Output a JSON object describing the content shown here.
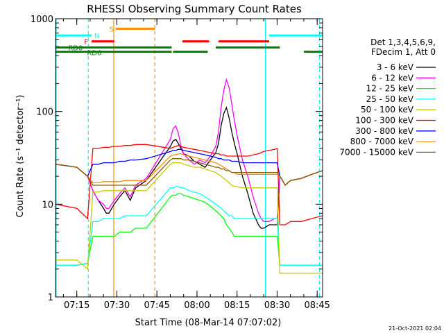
{
  "chart_data": {
    "type": "line",
    "title": "RHESSI Observing Summary Count Rates",
    "xlabel": "Start Time (08-Mar-14 07:07:02)",
    "ylabel": "Count Rate (s⁻¹ detector⁻¹)",
    "y_scale": "log",
    "ylim": [
      1,
      1000
    ],
    "xlim_minutes": [
      0,
      100
    ],
    "x_ticks": [
      {
        "label": "07:15",
        "minute": 7.97
      },
      {
        "label": "07:30",
        "minute": 22.97
      },
      {
        "label": "07:45",
        "minute": 37.97
      },
      {
        "label": "08:00",
        "minute": 52.97
      },
      {
        "label": "08:15",
        "minute": 67.97
      },
      {
        "label": "08:30",
        "minute": 82.97
      },
      {
        "label": "08:45",
        "minute": 97.97
      }
    ],
    "y_ticks": [
      {
        "label": "1",
        "value": 1
      },
      {
        "label": "10",
        "value": 10
      },
      {
        "label": "100",
        "value": 100
      },
      {
        "label": "1000",
        "value": 1000
      }
    ],
    "legend_header": [
      "Det 1,3,4,5,6,9,",
      "FDecim 1, Att 0"
    ],
    "legend_position": "right",
    "series": [
      {
        "name": "3 - 6 keV",
        "color": "#000000",
        "x": [
          0,
          8,
          12,
          14,
          16,
          18,
          19,
          20,
          22,
          24,
          26,
          28,
          30,
          34,
          43,
          44,
          45,
          46,
          47,
          48,
          50,
          52,
          54,
          56,
          58,
          60,
          61,
          62,
          63,
          64,
          65,
          66,
          67,
          68,
          70,
          72,
          74,
          76,
          77,
          78,
          80,
          82,
          83,
          84,
          85,
          86,
          88,
          92,
          96,
          100
        ],
        "y": [
          27,
          25,
          20,
          14,
          11,
          9,
          8,
          8,
          10,
          12,
          14,
          11,
          15,
          18,
          42,
          48,
          50,
          45,
          40,
          35,
          33,
          29,
          27,
          25,
          30,
          36,
          45,
          70,
          95,
          110,
          85,
          60,
          45,
          35,
          20,
          13,
          8,
          6,
          5.5,
          5.5,
          6,
          6,
          6,
          20,
          18,
          16,
          18,
          19,
          21,
          23
        ]
      },
      {
        "name": "6 - 12 keV",
        "color": "#ff00ff",
        "x": [
          0,
          8,
          12,
          14,
          16,
          18,
          19,
          20,
          22,
          24,
          26,
          28,
          30,
          34,
          43,
          44,
          45,
          46,
          47,
          48,
          50,
          52,
          54,
          56,
          58,
          60,
          61,
          62,
          63,
          64,
          65,
          66,
          67,
          68,
          70,
          72,
          74,
          76,
          77,
          78,
          80,
          82,
          83,
          84,
          85,
          86,
          88,
          92,
          96,
          100
        ],
        "y": [
          27,
          25,
          20,
          14,
          11,
          10,
          9,
          9,
          11,
          13,
          15,
          12,
          16,
          19,
          50,
          65,
          70,
          58,
          42,
          35,
          30,
          27,
          30,
          28,
          33,
          42,
          60,
          110,
          170,
          220,
          180,
          120,
          80,
          55,
          30,
          20,
          12,
          8,
          7,
          6.5,
          6.5,
          7,
          7,
          20,
          18,
          16,
          18,
          19,
          21,
          23
        ]
      },
      {
        "name": "12 - 25 keV",
        "color": "#00ff00",
        "x": [
          0,
          8,
          12,
          14,
          16,
          18,
          19,
          20,
          22,
          24,
          26,
          28,
          30,
          34,
          43,
          44,
          45,
          46,
          47,
          48,
          50,
          52,
          54,
          56,
          58,
          60,
          61,
          62,
          63,
          64,
          65,
          66,
          67,
          68,
          70,
          72,
          74,
          76,
          77,
          78,
          80,
          82,
          83,
          84,
          85,
          86,
          88,
          92,
          96,
          100
        ],
        "y": [
          2.2,
          2.2,
          2.3,
          4.5,
          4.5,
          4.5,
          4.5,
          4.5,
          4.5,
          5,
          5,
          5,
          5.5,
          5.5,
          12,
          12.5,
          12.5,
          13,
          13,
          12.5,
          12,
          11.5,
          11,
          10.5,
          9.5,
          8.5,
          8,
          7.5,
          7,
          6,
          5.5,
          5,
          4.5,
          4.5,
          4.5,
          4.5,
          4.5,
          4.5,
          4.5,
          4.5,
          4.5,
          4.5,
          4.5,
          2.2,
          2.2,
          2.2,
          2.2,
          2.2,
          2.2,
          2.2
        ]
      },
      {
        "name": "25 - 50 keV",
        "color": "#00ffff",
        "x": [
          0,
          8,
          12,
          14,
          16,
          18,
          19,
          20,
          22,
          24,
          26,
          28,
          30,
          34,
          43,
          44,
          45,
          46,
          47,
          48,
          50,
          52,
          54,
          56,
          58,
          60,
          61,
          62,
          63,
          64,
          65,
          66,
          67,
          68,
          70,
          72,
          74,
          76,
          77,
          78,
          80,
          82,
          83,
          84,
          85,
          86,
          88,
          92,
          96,
          100
        ],
        "y": [
          2.2,
          2.2,
          2.3,
          6.5,
          6.5,
          7,
          7,
          7,
          7,
          7,
          7.5,
          7.5,
          7.5,
          7.5,
          15,
          15,
          15.5,
          15.5,
          15,
          15,
          14,
          13.5,
          13,
          12,
          11,
          10,
          9.5,
          9,
          8.5,
          8,
          7.5,
          7.5,
          7,
          7,
          7,
          7,
          7,
          7,
          7,
          7,
          7,
          7,
          7,
          2.2,
          2.2,
          2.2,
          2.2,
          2.2,
          2.2,
          2.2
        ]
      },
      {
        "name": "50 - 100 keV",
        "color": "#c8c800",
        "x": [
          0,
          8,
          12,
          14,
          16,
          18,
          19,
          20,
          22,
          24,
          26,
          28,
          30,
          34,
          43,
          44,
          45,
          46,
          47,
          48,
          50,
          52,
          54,
          56,
          58,
          60,
          61,
          62,
          63,
          64,
          65,
          66,
          67,
          68,
          70,
          72,
          74,
          76,
          77,
          78,
          80,
          82,
          83,
          84,
          85,
          86,
          88,
          92,
          96,
          100
        ],
        "y": [
          2.5,
          2.5,
          2,
          13.5,
          13.5,
          14,
          14,
          14,
          14,
          14,
          14,
          14,
          14,
          14,
          27,
          28,
          28,
          28,
          28,
          27,
          26,
          25,
          25,
          24,
          23,
          22,
          21,
          20,
          19,
          18,
          17,
          16,
          15.5,
          15.5,
          15,
          15,
          15,
          15,
          15,
          15,
          15,
          15,
          15,
          1.8,
          1.8,
          1.8,
          1.8,
          1.8,
          1.8,
          1.8
        ]
      },
      {
        "name": "100 - 300 keV",
        "color": "#ff0000",
        "x": [
          0,
          8,
          12,
          14,
          16,
          18,
          19,
          20,
          22,
          24,
          26,
          28,
          30,
          34,
          43,
          44,
          45,
          46,
          47,
          48,
          50,
          52,
          54,
          56,
          58,
          60,
          61,
          62,
          63,
          64,
          65,
          66,
          67,
          68,
          70,
          72,
          74,
          76,
          77,
          78,
          80,
          82,
          83,
          84,
          85,
          86,
          88,
          92,
          96,
          100
        ],
        "y": [
          10,
          9,
          7,
          40,
          40,
          41,
          41,
          41,
          42,
          42,
          43,
          43,
          44,
          44,
          40,
          41,
          42,
          43,
          42,
          41,
          40,
          39,
          38,
          37,
          36,
          35,
          35,
          34,
          34,
          33,
          33,
          33,
          33,
          33,
          33,
          33,
          34,
          35,
          36,
          37,
          38,
          39,
          40,
          6,
          6,
          6,
          6.5,
          6.5,
          7,
          7.5
        ]
      },
      {
        "name": "300 - 800 keV",
        "color": "#0000ff",
        "x": [
          0,
          8,
          12,
          14,
          16,
          18,
          19,
          20,
          22,
          24,
          26,
          28,
          30,
          34,
          43,
          44,
          45,
          46,
          47,
          48,
          50,
          52,
          54,
          56,
          58,
          60,
          61,
          62,
          63,
          64,
          65,
          66,
          67,
          68,
          70,
          72,
          74,
          76,
          77,
          78,
          80,
          82,
          83,
          84,
          85,
          86,
          88,
          92,
          96,
          100
        ],
        "y": [
          27,
          25,
          20,
          27,
          27,
          28,
          28,
          28,
          28,
          29,
          29,
          30,
          30,
          31,
          37,
          38,
          38,
          39,
          39,
          38,
          37,
          36,
          35,
          34,
          33,
          32,
          31,
          31,
          30,
          30,
          30,
          29,
          29,
          29,
          28,
          28,
          28,
          28,
          28,
          28,
          28,
          28,
          28,
          20,
          18,
          16,
          18,
          19,
          21,
          23
        ]
      },
      {
        "name": "800 - 7000 keV",
        "color": "#ff8c00",
        "x": [
          0,
          8,
          12,
          14,
          16,
          18,
          19,
          20,
          22,
          24,
          26,
          28,
          30,
          34,
          43,
          44,
          45,
          46,
          47,
          48,
          50,
          52,
          54,
          56,
          58,
          60,
          61,
          62,
          63,
          64,
          65,
          66,
          67,
          68,
          70,
          72,
          74,
          76,
          77,
          78,
          80,
          82,
          83,
          84,
          85,
          86,
          88,
          92,
          96,
          100
        ],
        "y": [
          27,
          25,
          20,
          17,
          17,
          17.5,
          17.5,
          17.5,
          17.5,
          17.5,
          18,
          18,
          18,
          18,
          33,
          34,
          34,
          35,
          35,
          34,
          33,
          32,
          31,
          30,
          29,
          28,
          27,
          26,
          25,
          24,
          23,
          22,
          22,
          21,
          21,
          21,
          21,
          21,
          21,
          21,
          21,
          21,
          21,
          20,
          18,
          16,
          18,
          19,
          21,
          23
        ]
      },
      {
        "name": "7000 - 15000 keV",
        "color": "#8b5a00",
        "x": [
          0,
          8,
          12,
          14,
          16,
          18,
          19,
          20,
          22,
          24,
          26,
          28,
          30,
          34,
          43,
          44,
          45,
          46,
          47,
          48,
          50,
          52,
          54,
          56,
          58,
          60,
          61,
          62,
          63,
          64,
          65,
          66,
          67,
          68,
          70,
          72,
          74,
          76,
          77,
          78,
          80,
          82,
          83,
          84,
          85,
          86,
          88,
          92,
          96,
          100
        ],
        "y": [
          27,
          25,
          20,
          16,
          16,
          16,
          16,
          16,
          16,
          16,
          16,
          16,
          16,
          16,
          30,
          31,
          31,
          31,
          31,
          30,
          30,
          29,
          28,
          27,
          26,
          25,
          25,
          24,
          24,
          23,
          23,
          22,
          22,
          22,
          22,
          22,
          22,
          22,
          22,
          22,
          22,
          22,
          22,
          20,
          18,
          16,
          18,
          19,
          21,
          23
        ]
      }
    ],
    "vertical_markers": [
      {
        "minute": 0.3,
        "color": "#00ffff",
        "style": "solid"
      },
      {
        "minute": 12.3,
        "color": "#00ffff",
        "style": "dashed"
      },
      {
        "minute": 21.8,
        "color": "#ff8c00",
        "style": "solid"
      },
      {
        "minute": 37.2,
        "color": "#ff8c00",
        "style": "dashed"
      },
      {
        "minute": 78.6,
        "color": "#00ffff",
        "style": "solid"
      },
      {
        "minute": 98.8,
        "color": "#00ffff",
        "style": "dashed"
      }
    ],
    "flag_bars": [
      {
        "label": "N",
        "color": "#00ffff",
        "level": 660,
        "segments": [
          [
            0,
            13.5
          ],
          [
            80,
            100
          ]
        ]
      },
      {
        "label": "S",
        "color": "#ff8c00",
        "level": 780,
        "segments": [
          [
            22.5,
            37.2
          ]
        ]
      },
      {
        "label": "F",
        "color": "#ff0000",
        "level": 570,
        "segments": [
          [
            13.5,
            22
          ],
          [
            47.5,
            57.5
          ],
          [
            61,
            80
          ]
        ]
      },
      {
        "label": "RD0",
        "color": "#008000",
        "level": 490,
        "segments": [
          [
            0,
            43.5
          ],
          [
            60,
            84
          ]
        ]
      },
      {
        "label": "RD6",
        "color": "#008000",
        "level": 440,
        "segments": [
          [
            0,
            43.5
          ],
          [
            44,
            57
          ],
          [
            93,
            100
          ]
        ]
      }
    ]
  },
  "footer_timestamp": "21-Oct-2021 02:04"
}
